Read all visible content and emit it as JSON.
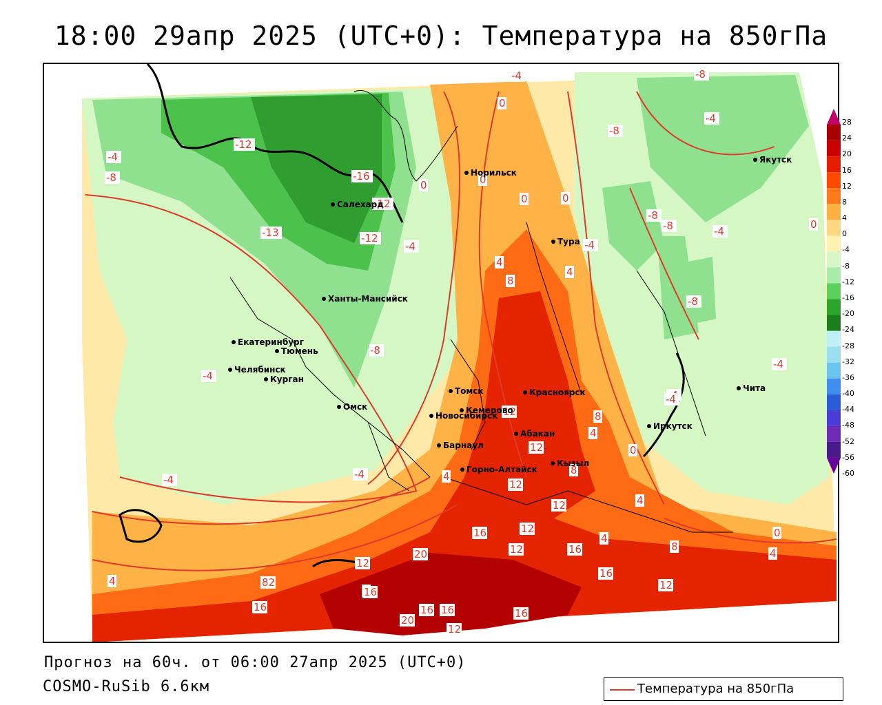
{
  "title": "18:00 29апр 2025 (UTC+0): Температура на 850гПа",
  "footer": {
    "forecast": "Прогноз на 60ч. от 06:00 27апр 2025 (UTC+0)",
    "model": "COSMO-RuSib 6.6км"
  },
  "legend": {
    "label": "Температура на 850гПа",
    "line_color": "#e03a2a"
  },
  "colorbar": {
    "ticks": [
      "28",
      "24",
      "20",
      "16",
      "12",
      "8",
      "4",
      "0",
      "-4",
      "-8",
      "-12",
      "-16",
      "-20",
      "-24",
      "-28",
      "-32",
      "-36",
      "-40",
      "-44",
      "-48",
      "-52",
      "-56",
      "-60"
    ],
    "colors": [
      "#c2006a",
      "#a80000",
      "#c80000",
      "#e61e00",
      "#ff4a00",
      "#ff7a1a",
      "#ffb040",
      "#ffd780",
      "#fff2b0",
      "#d8f7c8",
      "#a8ecaa",
      "#5cd05c",
      "#2aa52a",
      "#1a7f1a",
      "#bff0f8",
      "#9adff0",
      "#6ac4f0",
      "#3d8ef0",
      "#2a5cd8",
      "#4a3ad8",
      "#6f2ab8",
      "#4a1a8a",
      "#6a00a0"
    ]
  },
  "colors": {
    "hot_dark": "#b30000",
    "hot": "#e42400",
    "warm": "#ff6a14",
    "mild": "#ffb347",
    "neutral": "#ffe9a8",
    "cool": "#d4f7c4",
    "cold": "#8fe08f",
    "colder": "#4cc24c",
    "coldest": "#2f9d2f",
    "contour": "#e03a2a"
  },
  "cities": [
    {
      "name": "Якутск"
    },
    {
      "name": "Норильск"
    },
    {
      "name": "Салехард"
    },
    {
      "name": "Тура"
    },
    {
      "name": "Ханты-Мансийск"
    },
    {
      "name": "Екатеринбург"
    },
    {
      "name": "Тюмень"
    },
    {
      "name": "Челябинск"
    },
    {
      "name": "Курган"
    },
    {
      "name": "Омск"
    },
    {
      "name": "Новосибирск"
    },
    {
      "name": "Томск"
    },
    {
      "name": "Кемерово"
    },
    {
      "name": "Красноярск"
    },
    {
      "name": "Абакан"
    },
    {
      "name": "Барнаул"
    },
    {
      "name": "Горно-Алтайск"
    },
    {
      "name": "Кызыл"
    },
    {
      "name": "Иркутск"
    },
    {
      "name": "Чита"
    }
  ],
  "isotherm_labels": [
    {
      "text": "-4"
    },
    {
      "text": "-8"
    },
    {
      "text": "0"
    },
    {
      "text": "-4"
    },
    {
      "text": "-8"
    },
    {
      "text": "-12"
    },
    {
      "text": "-8"
    },
    {
      "text": "-4"
    },
    {
      "text": "-16"
    },
    {
      "text": "-12"
    },
    {
      "text": "0"
    },
    {
      "text": "0"
    },
    {
      "text": "0"
    },
    {
      "text": "0"
    },
    {
      "text": "-8"
    },
    {
      "text": "-8"
    },
    {
      "text": "-4"
    },
    {
      "text": "0"
    },
    {
      "text": "-13"
    },
    {
      "text": "-12"
    },
    {
      "text": "-4"
    },
    {
      "text": "-4"
    },
    {
      "text": "4"
    },
    {
      "text": "4"
    },
    {
      "text": "8"
    },
    {
      "text": "-8"
    },
    {
      "text": "-8"
    },
    {
      "text": "-4"
    },
    {
      "text": "-4"
    },
    {
      "text": "-4"
    },
    {
      "text": "12"
    },
    {
      "text": "8"
    },
    {
      "text": "4"
    },
    {
      "text": "12"
    },
    {
      "text": "8"
    },
    {
      "text": "-4"
    },
    {
      "text": "-4"
    },
    {
      "text": "4"
    },
    {
      "text": "12"
    },
    {
      "text": "0"
    },
    {
      "text": "12"
    },
    {
      "text": "4"
    },
    {
      "text": "16"
    },
    {
      "text": "12"
    },
    {
      "text": "12"
    },
    {
      "text": "16"
    },
    {
      "text": "4"
    },
    {
      "text": "0"
    },
    {
      "text": "8"
    },
    {
      "text": "4"
    },
    {
      "text": "20"
    },
    {
      "text": "12"
    },
    {
      "text": "16"
    },
    {
      "text": "12"
    },
    {
      "text": "4"
    },
    {
      "text": "12"
    },
    {
      "text": "8"
    },
    {
      "text": "16"
    },
    {
      "text": "8"
    },
    {
      "text": "16"
    },
    {
      "text": "16"
    },
    {
      "text": "16"
    },
    {
      "text": "20"
    },
    {
      "text": "12"
    },
    {
      "text": "16"
    },
    {
      "text": "-4"
    }
  ]
}
